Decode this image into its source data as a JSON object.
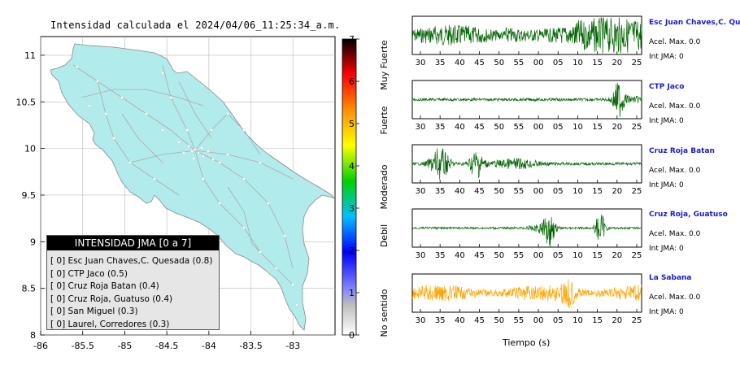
{
  "page": {
    "title": "Intensidad calculada el 2024/04/06_11:25:34_a.m."
  },
  "legend": {
    "title": "INTENSIDAD JMA [0 a 7]",
    "items": [
      "[ 0]  Esc Juan Chaves,C. Quesada (0.8)",
      "[ 0]  CTP Jaco (0.5)",
      "[ 0]  Cruz Roja Batan (0.4)",
      "[ 0]  Cruz Roja, Guatuso (0.4)",
      "[ 0]  San Miguel (0.3)",
      "[ 0]  Laurel, Corredores (0.3)"
    ]
  },
  "colorbar": {
    "ticks": [
      "0",
      "1",
      "2",
      "3",
      "4",
      "5",
      "6",
      "7"
    ],
    "labels": [
      "No sentido",
      "Debil",
      "Moderado",
      "Fuerte",
      "Muy Fuerte"
    ],
    "colors": [
      "#ffffff",
      "#8a8a8a",
      "#0000ff",
      "#00c0ff",
      "#00c000",
      "#ffff00",
      "#ff8000",
      "#ff0000",
      "#000000"
    ]
  },
  "map": {
    "land_color": "#b2ebec",
    "road_color": "#aaaaaa"
  },
  "waveforms": {
    "xlabel": "Tiempo (s)",
    "tick_labels": [
      "30",
      "35",
      "40",
      "45",
      "50",
      "55",
      "00",
      "05",
      "10",
      "15",
      "20",
      "25"
    ],
    "stations": [
      {
        "name": "Esc Juan Chaves,C. Qu",
        "acel": "Acel. Max. 0.0",
        "jma": "Int JMA: 0",
        "color": "#006400",
        "tick_labels": [
          "30",
          "35",
          "40",
          "45",
          "50",
          "55",
          "00",
          "05",
          "10",
          "15",
          "20",
          "25"
        ]
      },
      {
        "name": "CTP Jaco",
        "acel": "Acel. Max. 0.0",
        "jma": "Int JMA: 0",
        "color": "#006400",
        "tick_labels": [
          "30",
          "35",
          "40",
          "45",
          "50",
          "55",
          "00",
          "05",
          "10",
          "15",
          "20",
          "25"
        ]
      },
      {
        "name": "Cruz Roja Batan",
        "acel": "Acel. Max. 0.0",
        "jma": "Int JMA: 0",
        "color": "#006400",
        "tick_labels": [
          "30",
          "35",
          "40",
          "45",
          "50",
          "55",
          "00",
          "05",
          "10",
          "15",
          "20",
          "25"
        ]
      },
      {
        "name": "Cruz Roja, Guatuso",
        "acel": "Acel. Max. 0.0",
        "jma": "Int JMA: 0",
        "color": "#006400",
        "tick_labels": [
          "30",
          "35",
          "40",
          "45",
          "50",
          "55",
          "00",
          "05",
          "10",
          "15",
          "20",
          "25"
        ]
      },
      {
        "name": "La Sabana",
        "acel": "Acel. Max. 0.0",
        "jma": "Int JMA: 0",
        "color": "#ffa500",
        "tick_labels": [
          "30",
          "35",
          "40",
          "45",
          "50",
          "55",
          "00",
          "05",
          "10",
          "15",
          "20",
          "25"
        ]
      }
    ]
  },
  "chart_data": {
    "type": "map",
    "title": "Intensidad calculada el 2024/04/06_11:25:34_a.m.",
    "xlim": [
      -86,
      -82.5
    ],
    "ylim": [
      8,
      11.2
    ],
    "x_ticks": [
      "-86",
      "-85.5",
      "-85",
      "-84.5",
      "-84",
      "-83.5",
      "-83"
    ],
    "y_ticks": [
      "8",
      "8.5",
      "9",
      "9.5",
      "10",
      "10.5",
      "11"
    ],
    "x_tick_values": [
      -86,
      -85.5,
      -85,
      -84.5,
      -84,
      -83.5,
      -83
    ],
    "y_tick_values": [
      8,
      8.5,
      9,
      9.5,
      10,
      10.5,
      11
    ],
    "colorbar_range": [
      0,
      7
    ]
  }
}
